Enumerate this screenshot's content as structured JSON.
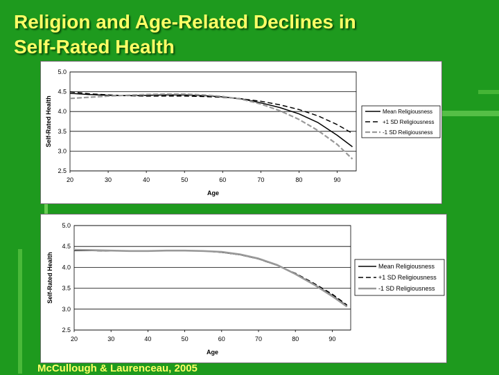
{
  "slide": {
    "title_line1": "Religion and Age-Related Declines in",
    "title_line2": "Self-Rated Health",
    "citation": "McCullough & Laurenceau, 2005"
  },
  "colors": {
    "background": "#1e9a1e",
    "title": "#ffff66",
    "series_mean": "#000000",
    "series_plus": "#000000",
    "series_minus": "#999999"
  },
  "chart_data": [
    {
      "type": "line",
      "xlabel": "Age",
      "ylabel": "Self-Rated Health",
      "xlim": [
        20,
        95
      ],
      "ylim": [
        2.5,
        5.0
      ],
      "x_ticks": [
        "20",
        "30",
        "40",
        "50",
        "60",
        "70",
        "80",
        "90"
      ],
      "y_ticks": [
        "5.0",
        "4.5",
        "4.0",
        "3.5",
        "3.0",
        "2.5"
      ],
      "grid": "horizontal",
      "legend_position": "right",
      "x": [
        20,
        25,
        30,
        35,
        40,
        45,
        50,
        55,
        60,
        65,
        70,
        75,
        80,
        85,
        90,
        94
      ],
      "series": [
        {
          "name": "Mean Religiousness",
          "style": "solid",
          "values": [
            4.46,
            4.43,
            4.41,
            4.4,
            4.41,
            4.42,
            4.42,
            4.4,
            4.37,
            4.32,
            4.22,
            4.1,
            3.94,
            3.72,
            3.4,
            3.11
          ]
        },
        {
          "name": "+1 SD Religiousness",
          "style": "dashed",
          "values": [
            4.5,
            4.45,
            4.42,
            4.4,
            4.39,
            4.39,
            4.39,
            4.38,
            4.36,
            4.32,
            4.26,
            4.17,
            4.05,
            3.89,
            3.67,
            3.45
          ]
        },
        {
          "name": "-1 SD Religiousness",
          "style": "gray-dashed",
          "values": [
            4.33,
            4.36,
            4.39,
            4.41,
            4.43,
            4.44,
            4.44,
            4.42,
            4.38,
            4.31,
            4.19,
            4.02,
            3.8,
            3.52,
            3.17,
            2.8
          ]
        }
      ]
    },
    {
      "type": "line",
      "xlabel": "Age",
      "ylabel": "Self-Rated Health",
      "xlim": [
        20,
        95
      ],
      "ylim": [
        2.5,
        5.0
      ],
      "x_ticks": [
        "20",
        "30",
        "40",
        "50",
        "60",
        "70",
        "80",
        "90"
      ],
      "y_ticks": [
        "5.0",
        "4.5",
        "4.0",
        "3.5",
        "3.0",
        "2.5"
      ],
      "grid": "horizontal",
      "legend_position": "right",
      "x": [
        20,
        25,
        30,
        35,
        40,
        45,
        50,
        55,
        60,
        65,
        70,
        75,
        80,
        85,
        90,
        94
      ],
      "series": [
        {
          "name": "Mean Religiousness",
          "style": "solid",
          "values": [
            4.4,
            4.4,
            4.39,
            4.39,
            4.4,
            4.4,
            4.4,
            4.39,
            4.36,
            4.3,
            4.2,
            4.05,
            3.85,
            3.6,
            3.33,
            3.08
          ]
        },
        {
          "name": "+1 SD Religiousness",
          "style": "dashed",
          "values": [
            4.41,
            4.4,
            4.39,
            4.39,
            4.4,
            4.4,
            4.4,
            4.39,
            4.36,
            4.3,
            4.2,
            4.05,
            3.86,
            3.62,
            3.36,
            3.1
          ]
        },
        {
          "name": "-1 SD Religiousness",
          "style": "gray-solid",
          "values": [
            4.42,
            4.41,
            4.4,
            4.39,
            4.39,
            4.4,
            4.4,
            4.39,
            4.37,
            4.31,
            4.21,
            4.06,
            3.84,
            3.59,
            3.31,
            3.06
          ]
        }
      ]
    }
  ]
}
